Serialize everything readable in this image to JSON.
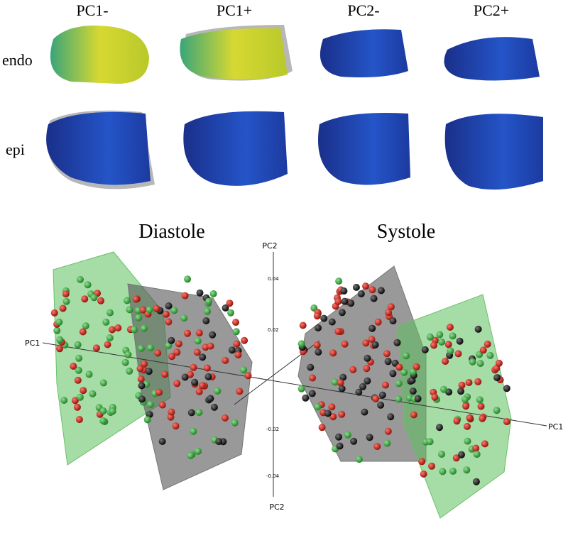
{
  "columns": [
    "PC1-",
    "PC1+",
    "PC2-",
    "PC2+"
  ],
  "rows": [
    "endo",
    "epi"
  ],
  "plot": {
    "titles": [
      "Diastole",
      "Systole"
    ],
    "axes": {
      "pc2_top": "PC2",
      "pc2_bottom": "PC2",
      "pc1_left": "PC1",
      "pc1_right": "PC1"
    },
    "ticks": [
      "0.04",
      "0.02",
      "-0.02",
      "-0.04"
    ]
  }
}
